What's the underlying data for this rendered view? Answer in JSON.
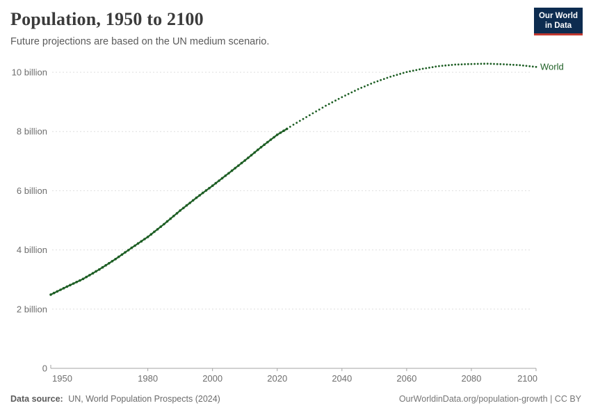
{
  "header": {
    "title": "Population, 1950 to 2100",
    "subtitle": "Future projections are based on the UN medium scenario.",
    "logo": {
      "line1": "Our World",
      "line2": "in Data",
      "bg_color": "#0d2c50",
      "accent_color": "#c0382f"
    }
  },
  "chart_data": {
    "type": "line",
    "title": "Population, 1950 to 2100",
    "xlabel": "",
    "ylabel": "",
    "xlim": [
      1950,
      2100
    ],
    "ylim": [
      0,
      10.5
    ],
    "grid": true,
    "x_ticks": [
      1950,
      1980,
      2000,
      2020,
      2040,
      2060,
      2080,
      2100
    ],
    "y_ticks": [
      {
        "value": 0,
        "label": "0"
      },
      {
        "value": 2,
        "label": "2 billion"
      },
      {
        "value": 4,
        "label": "4 billion"
      },
      {
        "value": 6,
        "label": "6 billion"
      },
      {
        "value": 8,
        "label": "8 billion"
      },
      {
        "value": 10,
        "label": "10 billion"
      }
    ],
    "series": [
      {
        "name": "World",
        "color": "#1d5e24",
        "unit": "billion",
        "projection_start": 2023,
        "points": [
          [
            1950,
            2.49
          ],
          [
            1955,
            2.76
          ],
          [
            1960,
            3.02
          ],
          [
            1965,
            3.34
          ],
          [
            1970,
            3.69
          ],
          [
            1975,
            4.07
          ],
          [
            1980,
            4.44
          ],
          [
            1985,
            4.87
          ],
          [
            1990,
            5.33
          ],
          [
            1995,
            5.76
          ],
          [
            2000,
            6.17
          ],
          [
            2005,
            6.59
          ],
          [
            2010,
            7.02
          ],
          [
            2015,
            7.47
          ],
          [
            2020,
            7.89
          ],
          [
            2023,
            8.09
          ],
          [
            2025,
            8.23
          ],
          [
            2030,
            8.55
          ],
          [
            2035,
            8.87
          ],
          [
            2040,
            9.16
          ],
          [
            2045,
            9.43
          ],
          [
            2050,
            9.66
          ],
          [
            2055,
            9.85
          ],
          [
            2060,
            10.01
          ],
          [
            2065,
            10.12
          ],
          [
            2070,
            10.21
          ],
          [
            2075,
            10.26
          ],
          [
            2080,
            10.28
          ],
          [
            2085,
            10.29
          ],
          [
            2090,
            10.27
          ],
          [
            2095,
            10.24
          ],
          [
            2100,
            10.18
          ]
        ]
      }
    ],
    "legend_position": "end-of-line"
  },
  "footer": {
    "source_label": "Data source:",
    "source_text": "UN, World Population Prospects (2024)",
    "link": "OurWorldinData.org/population-growth | CC BY"
  }
}
